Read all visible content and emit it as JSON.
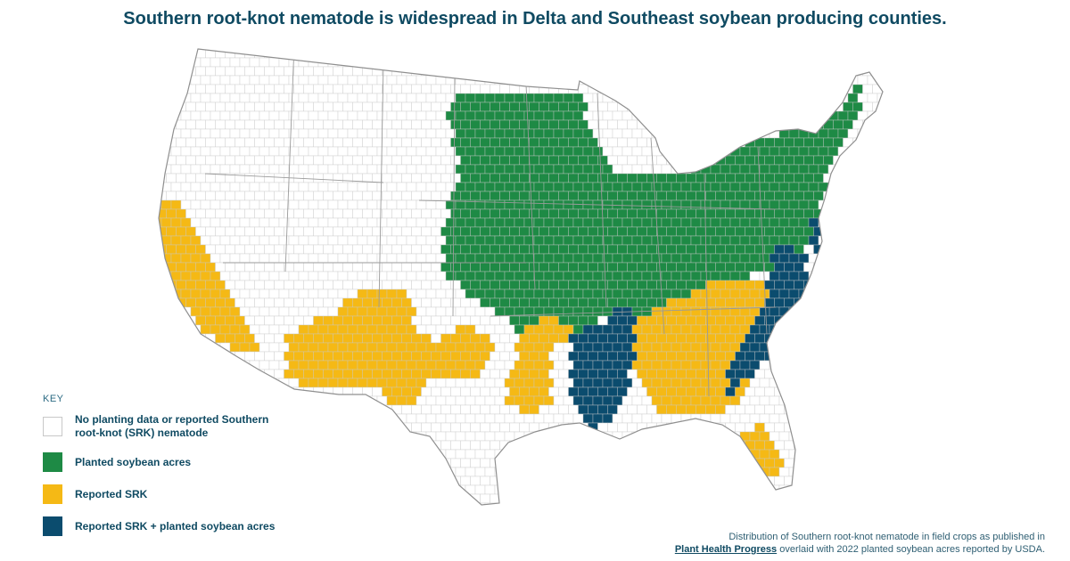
{
  "title": "Southern root-knot nematode is widespread in Delta and Southeast soybean producing counties.",
  "colors": {
    "none": "#ffffff",
    "soybean": "#1e8a45",
    "srk": "#f5b915",
    "both": "#0b4c6e",
    "county_line": "#c9c9c9",
    "state_line": "#9a9a9a",
    "text": "#0f4a62"
  },
  "key": {
    "heading": "KEY",
    "items": [
      {
        "id": "none",
        "label": "No planting data or reported Southern root-knot (SRK) nematode"
      },
      {
        "id": "soybean",
        "label": "Planted soybean acres"
      },
      {
        "id": "srk",
        "label": "Reported SRK"
      },
      {
        "id": "both",
        "label": "Reported SRK + planted soybean acres"
      }
    ]
  },
  "source": {
    "line1": "Distribution of Southern root-knot nematode in field crops as published in",
    "publication": "Plant Health Progress",
    "line2_rest": " overlaid with 2022 planted soybean acres reported by USDA."
  }
}
